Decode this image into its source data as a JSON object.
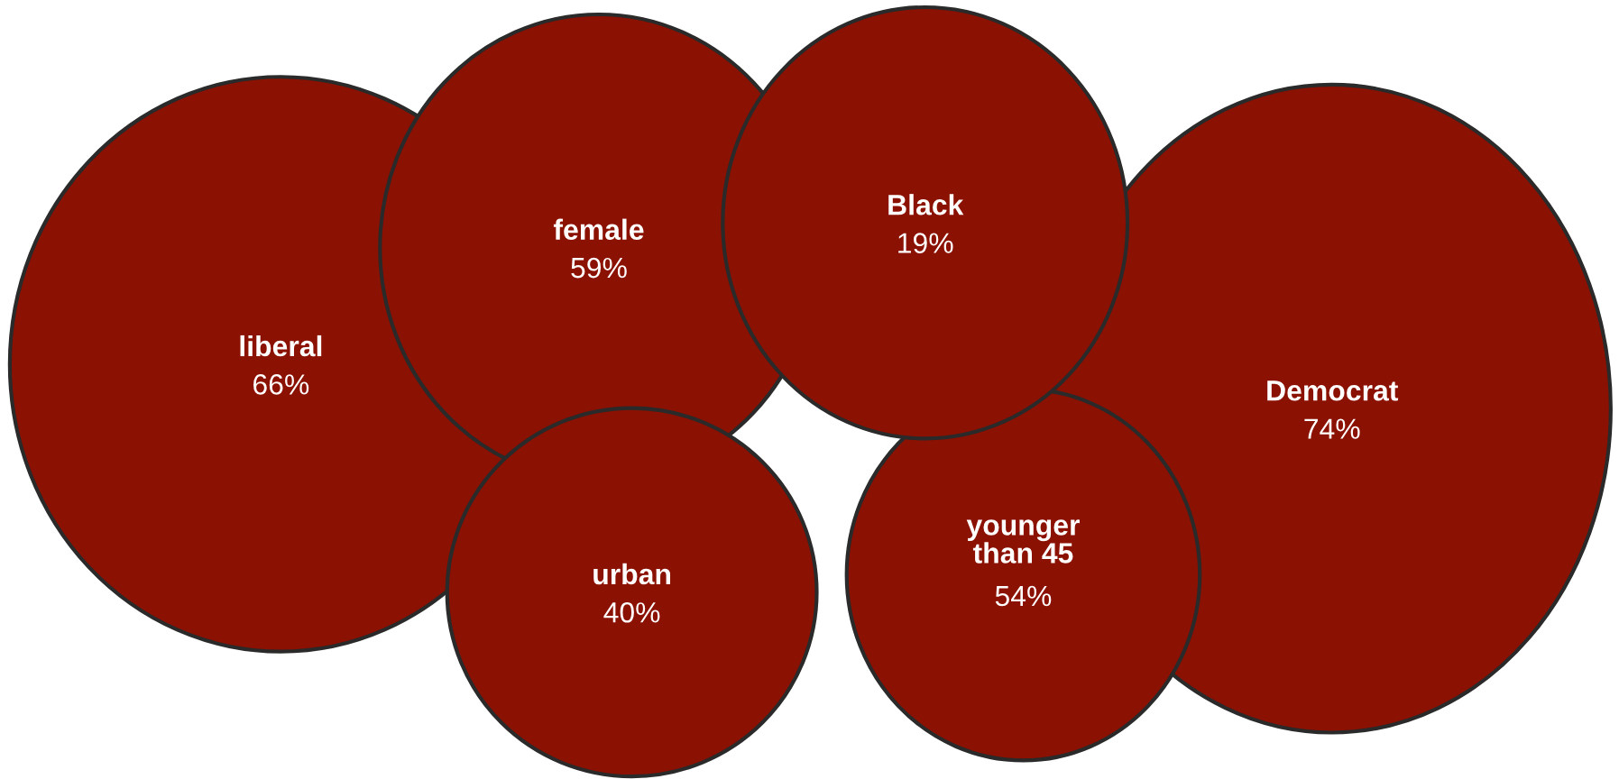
{
  "chart_data": {
    "type": "other",
    "categories": [
      "liberal",
      "female",
      "urban",
      "Black",
      "younger\nthan 45",
      "Democrat"
    ],
    "values": [
      66,
      59,
      40,
      19,
      54,
      74
    ],
    "value_labels": [
      "66%",
      "59%",
      "40%",
      "19%",
      "54%",
      "74%"
    ],
    "color": "#8b1102"
  }
}
